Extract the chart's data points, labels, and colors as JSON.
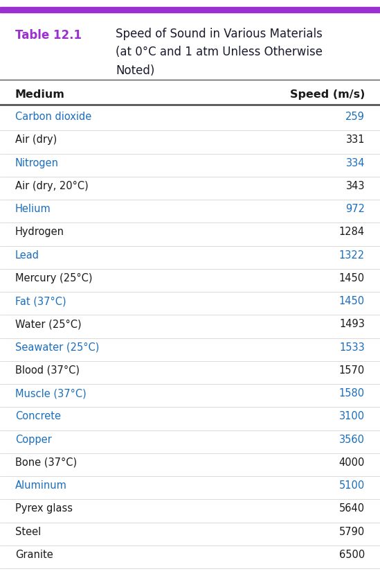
{
  "table_label": "Table 12.1",
  "table_label_color": "#9B30D0",
  "title_line1": "Speed of Sound in Various Materials",
  "title_line2": "(at 0°C and 1 atm Unless Otherwise",
  "title_line3": "Noted)",
  "title_color": "#1a1a2e",
  "col1_header": "Medium",
  "col2_header": "Speed (m/s)",
  "header_color": "#1a1a1a",
  "top_bar_color": "#9B30D0",
  "rows": [
    {
      "medium": "Carbon dioxide",
      "speed": "259",
      "color": "#1a6ebd"
    },
    {
      "medium": "Air (dry)",
      "speed": "331",
      "color": "#1a1a1a"
    },
    {
      "medium": "Nitrogen",
      "speed": "334",
      "color": "#1a6ebd"
    },
    {
      "medium": "Air (dry, 20°C)",
      "speed": "343",
      "color": "#1a1a1a"
    },
    {
      "medium": "Helium",
      "speed": "972",
      "color": "#1a6ebd"
    },
    {
      "medium": "Hydrogen",
      "speed": "1284",
      "color": "#1a1a1a"
    },
    {
      "medium": "Lead",
      "speed": "1322",
      "color": "#1a6ebd"
    },
    {
      "medium": "Mercury (25°C)",
      "speed": "1450",
      "color": "#1a1a1a"
    },
    {
      "medium": "Fat (37°C)",
      "speed": "1450",
      "color": "#1a6ebd"
    },
    {
      "medium": "Water (25°C)",
      "speed": "1493",
      "color": "#1a1a1a"
    },
    {
      "medium": "Seawater (25°C)",
      "speed": "1533",
      "color": "#1a6ebd"
    },
    {
      "medium": "Blood (37°C)",
      "speed": "1570",
      "color": "#1a1a1a"
    },
    {
      "medium": "Muscle (37°C)",
      "speed": "1580",
      "color": "#1a6ebd"
    },
    {
      "medium": "Concrete",
      "speed": "3100",
      "color": "#1a6ebd"
    },
    {
      "medium": "Copper",
      "speed": "3560",
      "color": "#1a6ebd"
    },
    {
      "medium": "Bone (37°C)",
      "speed": "4000",
      "color": "#1a1a1a"
    },
    {
      "medium": "Aluminum",
      "speed": "5100",
      "color": "#1a6ebd"
    },
    {
      "medium": "Pyrex glass",
      "speed": "5640",
      "color": "#1a1a1a"
    },
    {
      "medium": "Steel",
      "speed": "5790",
      "color": "#1a1a1a"
    },
    {
      "medium": "Granite",
      "speed": "6500",
      "color": "#1a1a1a"
    }
  ],
  "bg_color": "#ffffff",
  "line_color": "#555555",
  "fig_width": 5.49,
  "fig_height": 8.31,
  "dpi": 100
}
